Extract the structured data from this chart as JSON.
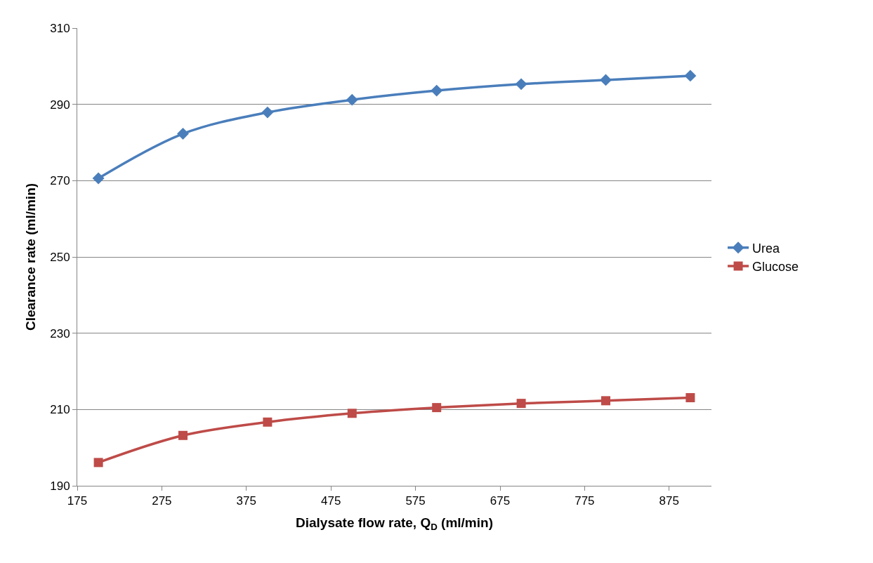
{
  "chart_data": {
    "type": "line",
    "xlabel": "Dialysate flow rate, Q$_{D}$ (ml/min)",
    "ylabel": "Clearance rate (ml/min)",
    "x": [
      200,
      300,
      400,
      500,
      600,
      700,
      800,
      900
    ],
    "series": [
      {
        "name": "Urea",
        "color": "#4a7ebb",
        "marker": "diamond",
        "values": [
          270.6,
          282.3,
          287.9,
          291.2,
          293.6,
          295.3,
          296.4,
          297.5
        ]
      },
      {
        "name": "Glucose",
        "color": "#be4b48",
        "marker": "square",
        "values": [
          196.1,
          203.2,
          206.7,
          209.0,
          210.5,
          211.6,
          212.3,
          213.1
        ]
      }
    ],
    "xlim": [
      175,
      925
    ],
    "xticks": [
      175,
      275,
      375,
      475,
      575,
      675,
      775,
      875
    ],
    "ylim": [
      190,
      310
    ],
    "yticks": [
      190,
      210,
      230,
      250,
      270,
      290,
      310
    ],
    "grid": "y",
    "legend": "right",
    "line_style": "solid"
  }
}
